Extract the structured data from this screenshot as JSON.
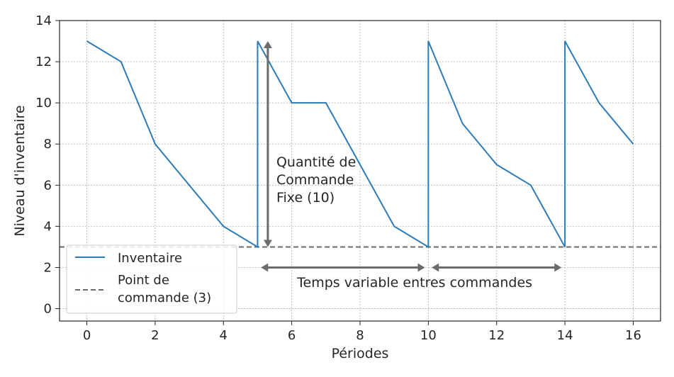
{
  "chart_data": {
    "type": "line",
    "xlabel": "Périodes",
    "ylabel": "Niveau d'inventaire",
    "xlim": [
      -0.8,
      16.8
    ],
    "ylim": [
      -0.6,
      14
    ],
    "xticks": [
      0,
      2,
      4,
      6,
      8,
      10,
      12,
      14,
      16
    ],
    "yticks": [
      0,
      2,
      4,
      6,
      8,
      10,
      12,
      14
    ],
    "grid": true,
    "series": [
      {
        "name": "Inventaire",
        "color": "#2c7bb6",
        "points": [
          [
            0,
            13
          ],
          [
            1,
            12
          ],
          [
            2,
            8
          ],
          [
            3,
            6
          ],
          [
            4,
            4
          ],
          [
            5,
            3
          ],
          [
            5,
            13
          ],
          [
            6,
            10
          ],
          [
            7,
            10
          ],
          [
            8,
            7
          ],
          [
            9,
            4
          ],
          [
            10,
            3
          ],
          [
            10,
            13
          ],
          [
            11,
            9
          ],
          [
            12,
            7
          ],
          [
            13,
            6
          ],
          [
            14,
            3
          ],
          [
            14,
            13
          ],
          [
            15,
            10
          ],
          [
            16,
            8
          ]
        ]
      }
    ],
    "reference_line": {
      "name": "Point de commande (3)",
      "legend_lines": [
        "Point de",
        "commande (3)"
      ],
      "y": 3,
      "color": "#6b6b6b",
      "style": "dashed"
    },
    "annotations": [
      {
        "kind": "vertical-double-arrow",
        "x": 5.3,
        "y_from": 3,
        "y_to": 13,
        "text_lines": [
          "Quantité de",
          "Commande",
          "Fixe (10)"
        ],
        "text_x": 5.55,
        "text_y": 6.9
      },
      {
        "kind": "horizontal-double-arrow",
        "y": 2,
        "x_from": 5.1,
        "x_to": 9.9
      },
      {
        "kind": "horizontal-double-arrow",
        "y": 2,
        "x_from": 10.1,
        "x_to": 13.9
      },
      {
        "kind": "text",
        "text": "Temps variable entres commandes",
        "x": 9.6,
        "y": 1.05
      }
    ],
    "legend": {
      "placement": "lower-left"
    },
    "arrow_color": "#6b6b6b"
  }
}
